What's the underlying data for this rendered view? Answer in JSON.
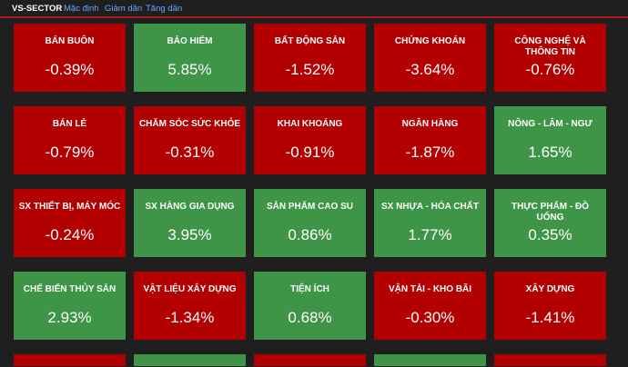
{
  "header": {
    "title": "VS-SECTOR",
    "sort_default": "Mặc định",
    "sort_desc": "Giảm dần",
    "sort_asc": "Tăng dần"
  },
  "colors": {
    "up": "#3e9447",
    "down": "#b30000",
    "accent_line": "#b21e1e",
    "link": "#6aa7ff"
  },
  "sectors": [
    {
      "name": "BÁN BUÔN",
      "change": "-0.39%",
      "trend": "down"
    },
    {
      "name": "BẢO HIỂM",
      "change": "5.85%",
      "trend": "up"
    },
    {
      "name": "BẤT ĐỘNG SẢN",
      "change": "-1.52%",
      "trend": "down"
    },
    {
      "name": "CHỨNG KHOÁN",
      "change": "-3.64%",
      "trend": "down"
    },
    {
      "name": "CÔNG NGHỆ VÀ THÔNG TIN",
      "change": "-0.76%",
      "trend": "down"
    },
    {
      "name": "BÁN LẺ",
      "change": "-0.79%",
      "trend": "down"
    },
    {
      "name": "CHĂM SÓC SỨC KHỎE",
      "change": "-0.31%",
      "trend": "down"
    },
    {
      "name": "KHAI KHOÁNG",
      "change": "-0.91%",
      "trend": "down"
    },
    {
      "name": "NGÂN HÀNG",
      "change": "-1.87%",
      "trend": "down"
    },
    {
      "name": "NÔNG - LÂM - NGƯ",
      "change": "1.65%",
      "trend": "up"
    },
    {
      "name": "SX THIẾT BỊ, MÁY MÓC",
      "change": "-0.24%",
      "trend": "down"
    },
    {
      "name": "SX HÀNG GIA DỤNG",
      "change": "3.95%",
      "trend": "up"
    },
    {
      "name": "SẢN PHẨM CAO SU",
      "change": "0.86%",
      "trend": "up"
    },
    {
      "name": "SX NHỰA - HÓA CHẤT",
      "change": "1.77%",
      "trend": "up"
    },
    {
      "name": "THỰC PHẨM - ĐỒ UỐNG",
      "change": "0.35%",
      "trend": "up"
    },
    {
      "name": "CHẾ BIẾN THỦY SẢN",
      "change": "2.93%",
      "trend": "up"
    },
    {
      "name": "VẬT LIỆU XÂY DỰNG",
      "change": "-1.34%",
      "trend": "down"
    },
    {
      "name": "TIỆN ÍCH",
      "change": "0.68%",
      "trend": "up"
    },
    {
      "name": "VẬN TẢI - KHO BÃI",
      "change": "-0.30%",
      "trend": "down"
    },
    {
      "name": "XÂY DỰNG",
      "change": "-1.41%",
      "trend": "down"
    }
  ],
  "partial_row": [
    "down",
    "up",
    "down",
    "up",
    "down"
  ]
}
